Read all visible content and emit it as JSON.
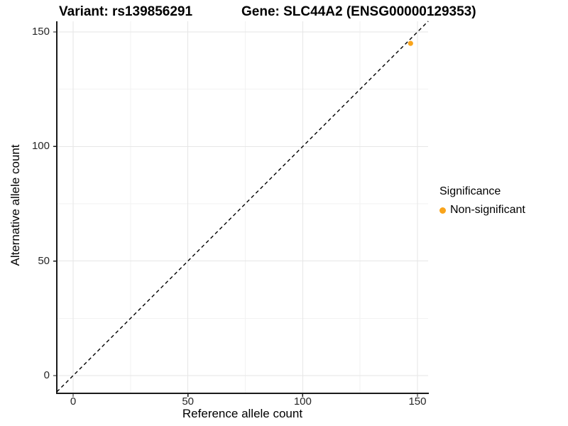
{
  "header": {
    "variant_title": "Variant: rs139856291",
    "gene_title": "Gene: SLC44A2 (ENSG00000129353)"
  },
  "legend": {
    "title": "Significance",
    "items": [
      {
        "label": "Non-significant",
        "color": "#F9A41B"
      }
    ]
  },
  "chart_data": {
    "type": "scatter",
    "title": "Variant: rs139856291 | Gene: SLC44A2 (ENSG00000129353)",
    "xlabel": "Reference allele count",
    "ylabel": "Alternative allele count",
    "xlim": [
      -7.1,
      154.7
    ],
    "ylim": [
      -7.1,
      154.7
    ],
    "x_ticks": [
      0,
      50,
      100,
      150
    ],
    "y_ticks": [
      0,
      50,
      100,
      150
    ],
    "grid": true,
    "legend_position": "right",
    "reference_line": {
      "style": "dashed",
      "slope": 1,
      "intercept": 0,
      "color": "#000000"
    },
    "series": [
      {
        "name": "Non-significant",
        "color": "#F9A41B",
        "points": [
          {
            "x": 147,
            "y": 145
          }
        ]
      }
    ]
  }
}
